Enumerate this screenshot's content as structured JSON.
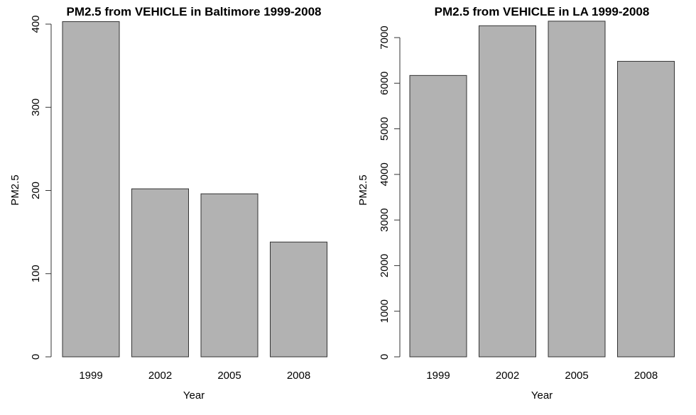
{
  "chart_data": [
    {
      "type": "bar",
      "title": "PM2.5 from VEHICLE in Baltimore 1999-2008",
      "xlabel": "Year",
      "ylabel": "PM2.5",
      "categories": [
        "1999",
        "2002",
        "2005",
        "2008"
      ],
      "values": [
        403,
        202,
        196,
        138
      ],
      "ylim": [
        0,
        400
      ],
      "yticks": [
        0,
        100,
        200,
        300,
        400
      ],
      "bar_color": "#b2b2b2",
      "grid": false,
      "legend": "none"
    },
    {
      "type": "bar",
      "title": "PM2.5 from VEHICLE in LA 1999-2008",
      "xlabel": "Year",
      "ylabel": "PM2.5",
      "categories": [
        "1999",
        "2002",
        "2005",
        "2008"
      ],
      "values": [
        6170,
        7260,
        7360,
        6480
      ],
      "ylim": [
        0,
        7000
      ],
      "yticks": [
        0,
        1000,
        2000,
        3000,
        4000,
        5000,
        6000,
        7000
      ],
      "bar_color": "#b2b2b2",
      "grid": false,
      "legend": "none"
    }
  ]
}
